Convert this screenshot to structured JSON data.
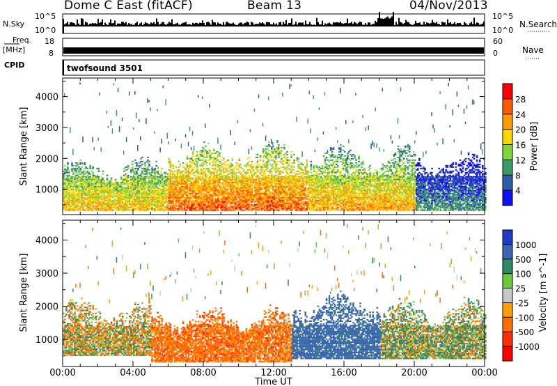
{
  "header": {
    "station": "Dome C East (fitACF)",
    "beam": "Beam 13",
    "date": "04/Nov/2013"
  },
  "strip_panels": {
    "nsky": {
      "label": "N.Sky",
      "ytick_top": "10^5",
      "ytick_bottom": "10^0"
    },
    "nsearch": {
      "label": "N.Search",
      "ytick_top": "10^5",
      "ytick_bottom": "10^0"
    },
    "freq": {
      "label_line1": "Freq.",
      "label_line2": "[MHz]",
      "ytick_top": "18",
      "ytick_bottom": "8"
    },
    "nave": {
      "label": "Nave",
      "ytick_top": "60",
      "ytick_bottom": "0"
    },
    "cpid": {
      "label": "CPID",
      "value": "twofsound 3501"
    }
  },
  "chart_data": [
    {
      "type": "heatmap",
      "panel": "power",
      "xlabel": "Time UT",
      "ylabel": "Slant Range [km]",
      "xlim_hours": [
        0,
        24
      ],
      "ylim": [
        180,
        4600
      ],
      "yticks": [
        1000,
        2000,
        3000,
        4000
      ],
      "colorbar": {
        "label": "Power [dB]",
        "ticks": [
          "28",
          "24",
          "20",
          "16",
          "12",
          "8",
          "4"
        ],
        "colors": [
          "#ff0000",
          "#ff5a00",
          "#ff9b00",
          "#ffd700",
          "#7ed63a",
          "#3a9a68",
          "#2e5aa8",
          "#1010f0"
        ]
      },
      "echo_regions": [
        {
          "t": [
            0.0,
            6.0
          ],
          "range_km": [
            300,
            1800
          ],
          "dominant_power_db": 20
        },
        {
          "t": [
            6.0,
            14.0
          ],
          "range_km": [
            300,
            2300
          ],
          "dominant_power_db": 26
        },
        {
          "t": [
            14.0,
            20.0
          ],
          "range_km": [
            300,
            2200
          ],
          "dominant_power_db": 22
        },
        {
          "t": [
            20.0,
            24.0
          ],
          "range_km": [
            300,
            2000
          ],
          "dominant_power_db": 10
        }
      ]
    },
    {
      "type": "heatmap",
      "panel": "velocity",
      "xlabel": "Time UT",
      "ylabel": "Slant Range [km]",
      "xlim_hours": [
        0,
        24
      ],
      "ylim": [
        180,
        4600
      ],
      "yticks": [
        1000,
        2000,
        3000,
        4000
      ],
      "colorbar": {
        "label": "Velocity [m s^-1]",
        "ticks": [
          "1000",
          "500",
          "100",
          "25",
          "-25",
          "-100",
          "-500",
          "-1000"
        ],
        "colors": [
          "#1e3cc8",
          "#3c64b4",
          "#2e8a66",
          "#6ec83c",
          "#c8c8c8",
          "#ffa000",
          "#ff6e00",
          "#ff3000",
          "#ff0000"
        ]
      },
      "echo_regions": [
        {
          "t": [
            0.0,
            5.0
          ],
          "range_km": [
            500,
            2000
          ],
          "dominant_velocity": -25
        },
        {
          "t": [
            5.0,
            13.0
          ],
          "range_km": [
            300,
            1800
          ],
          "dominant_velocity": -300
        },
        {
          "t": [
            13.0,
            18.0
          ],
          "range_km": [
            400,
            2200
          ],
          "dominant_velocity": 700
        },
        {
          "t": [
            18.0,
            24.0
          ],
          "range_km": [
            400,
            2000
          ],
          "dominant_velocity": 100
        }
      ]
    }
  ],
  "x_axis": {
    "ticks": [
      "00:00",
      "04:00",
      "08:00",
      "12:00",
      "16:00",
      "20:00",
      "00:00"
    ],
    "label": "Time UT"
  }
}
